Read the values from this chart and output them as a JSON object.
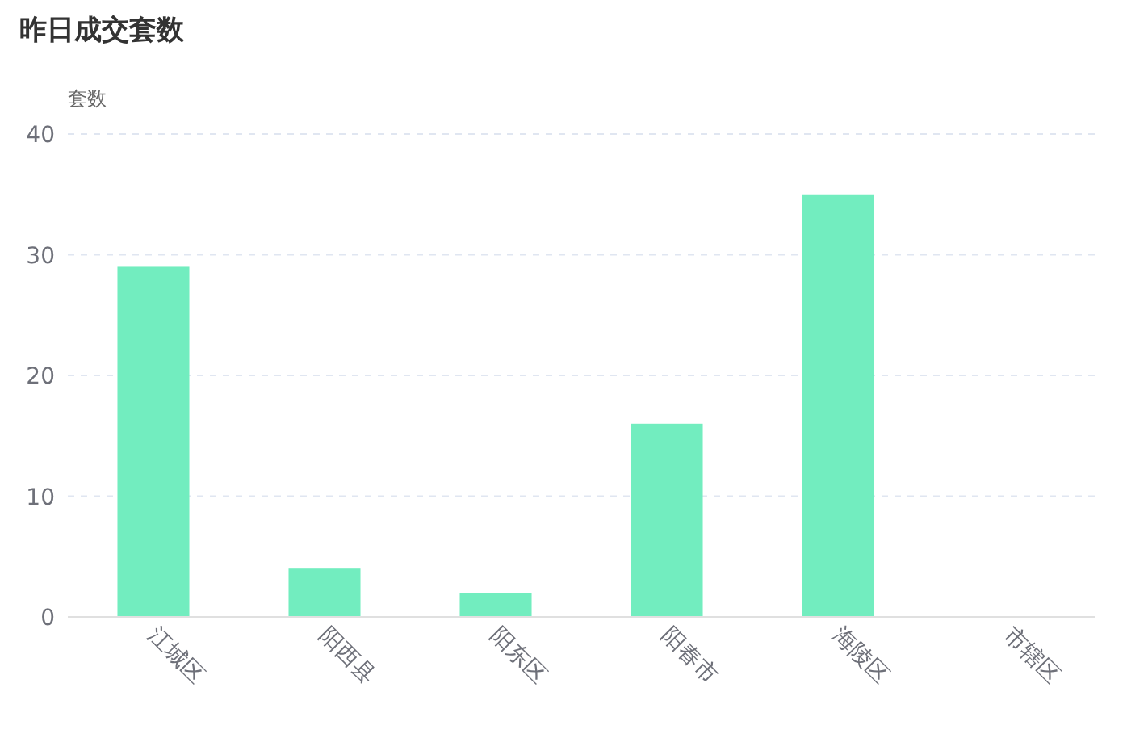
{
  "chart_data": {
    "type": "bar",
    "title": "昨日成交套数",
    "ylabel": "套数",
    "categories": [
      "江城区",
      "阳西县",
      "阳东区",
      "阳春市",
      "海陵区",
      "市辖区"
    ],
    "values": [
      29,
      4,
      2,
      16,
      35,
      0
    ],
    "color": "#72edbf",
    "ylim": [
      0,
      40
    ],
    "yticks": [
      0,
      10,
      20,
      30,
      40
    ],
    "grid": "y"
  }
}
